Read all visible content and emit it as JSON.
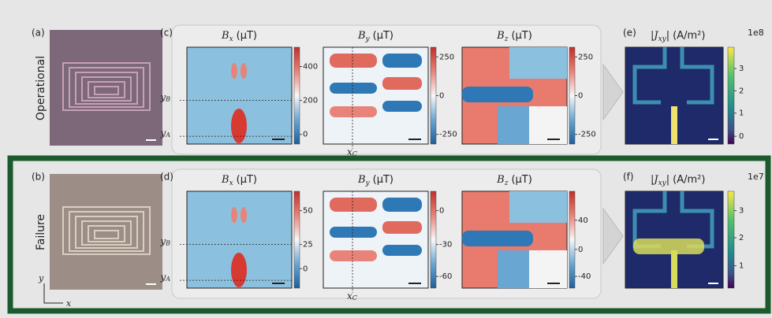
{
  "figure": {
    "rows": [
      {
        "label": "Operational",
        "photo_label": "(a)",
        "maps_label": "(c)",
        "current_label": "(e)",
        "maps": [
          {
            "symbol": "B",
            "subscript": "x",
            "unit": "(μT)",
            "ticks": [
              "400",
              "200",
              "0"
            ]
          },
          {
            "symbol": "B",
            "subscript": "y",
            "unit": "(μT)",
            "ticks": [
              "250",
              "0",
              "-250"
            ]
          },
          {
            "symbol": "B",
            "subscript": "z",
            "unit": "(μT)",
            "ticks": [
              "250",
              "0",
              "-250"
            ]
          }
        ],
        "current": {
          "symbol": "|J",
          "subscript": "xy",
          "close": "|",
          "unit": "(A/m²)",
          "scale": "1e8",
          "ticks": [
            "3",
            "2",
            "1",
            "0"
          ]
        },
        "guides": [
          {
            "symbol": "y",
            "subscript": "B"
          },
          {
            "symbol": "y",
            "subscript": "A"
          },
          {
            "symbol": "x",
            "subscript": "C"
          }
        ]
      },
      {
        "label": "Failure",
        "photo_label": "(b)",
        "maps_label": "(d)",
        "current_label": "(f)",
        "maps": [
          {
            "symbol": "B",
            "subscript": "x",
            "unit": "(μT)",
            "ticks": [
              "50",
              "25",
              "0"
            ]
          },
          {
            "symbol": "B",
            "subscript": "y",
            "unit": "(μT)",
            "ticks": [
              "0",
              "-30",
              "-60"
            ]
          },
          {
            "symbol": "B",
            "subscript": "z",
            "unit": "(μT)",
            "ticks": [
              "40",
              "0",
              "-40"
            ]
          }
        ],
        "current": {
          "symbol": "|J",
          "subscript": "xy",
          "close": "|",
          "unit": "(A/m²)",
          "scale": "1e7",
          "ticks": [
            "3",
            "2",
            "1"
          ]
        },
        "guides": [
          {
            "symbol": "y",
            "subscript": "B"
          },
          {
            "symbol": "y",
            "subscript": "A"
          },
          {
            "symbol": "x",
            "subscript": "C"
          }
        ]
      }
    ],
    "axes": {
      "y": "y",
      "x": "x"
    }
  }
}
